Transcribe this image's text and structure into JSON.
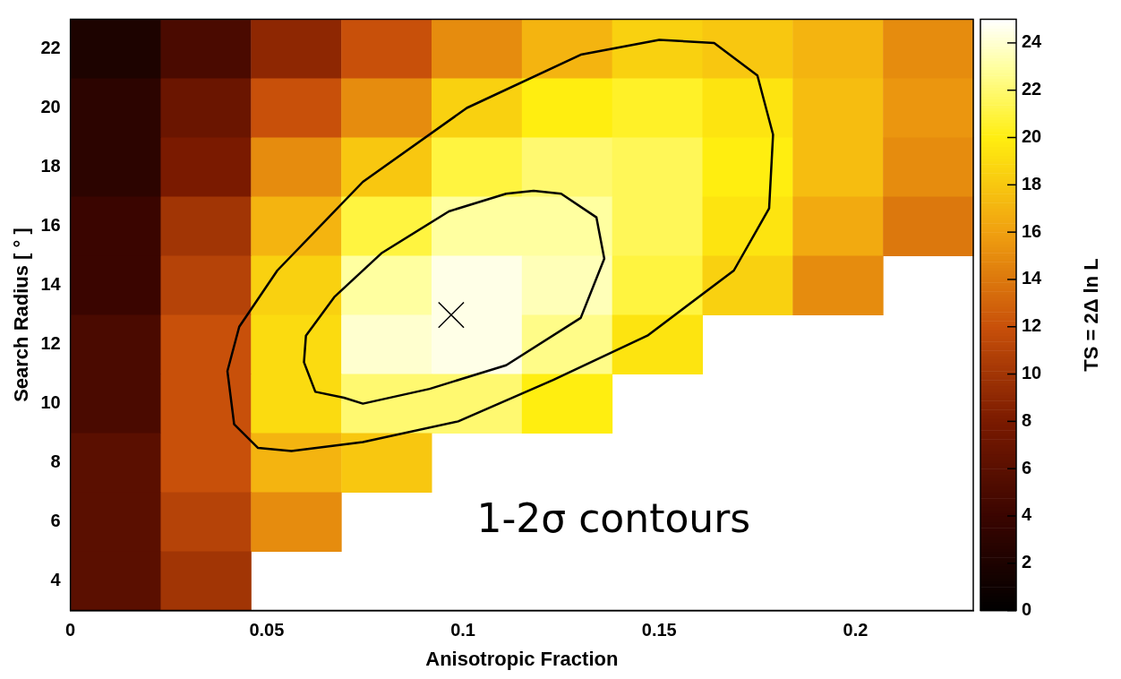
{
  "chart_data": {
    "type": "heatmap",
    "xlabel": "Anisotropic Fraction",
    "ylabel": "Search Radius [ ° ]",
    "clabel": "TS = 2Δ ln L",
    "xlim": [
      0,
      0.23
    ],
    "ylim": [
      3,
      23
    ],
    "xticks": [
      0,
      0.05,
      0.1,
      0.15,
      0.2
    ],
    "yticks": [
      4,
      6,
      8,
      10,
      12,
      14,
      16,
      18,
      20,
      22
    ],
    "clim": [
      0,
      25
    ],
    "cticks": [
      0,
      2,
      4,
      6,
      8,
      10,
      12,
      14,
      16,
      18,
      20,
      22,
      24
    ],
    "cells": [
      [
        2,
        5,
        9,
        12,
        15,
        17,
        18.5,
        18,
        17,
        15
      ],
      [
        3,
        7,
        12,
        15,
        18.5,
        20,
        20.5,
        19.5,
        17.5,
        15.5
      ],
      [
        3,
        8,
        15,
        18,
        21,
        22,
        21.5,
        20,
        17.5,
        15
      ],
      [
        4,
        10,
        17,
        21,
        23,
        23,
        21.5,
        19.5,
        16.5,
        14
      ],
      [
        4,
        11,
        18.5,
        23,
        24.5,
        23.5,
        21,
        18.5,
        15,
        null
      ],
      [
        5,
        12,
        19,
        24,
        24.5,
        22.5,
        19.5,
        null,
        null,
        null
      ],
      [
        5,
        12,
        19,
        22,
        22,
        20,
        null,
        null,
        null,
        null
      ],
      [
        6,
        12,
        17,
        18,
        null,
        null,
        null,
        null,
        null,
        null
      ],
      [
        6,
        11,
        15,
        null,
        null,
        null,
        null,
        null,
        null,
        null
      ],
      [
        6,
        10,
        null,
        null,
        null,
        null,
        null,
        null,
        null,
        null
      ]
    ],
    "series": [
      {
        "type": "scatter",
        "color": "#000000",
        "marker": "cross",
        "x": [
          0.097
        ],
        "values": [
          13.0
        ]
      }
    ],
    "annotations": [
      "1-2σ contours"
    ],
    "grid": false,
    "legend": false
  }
}
